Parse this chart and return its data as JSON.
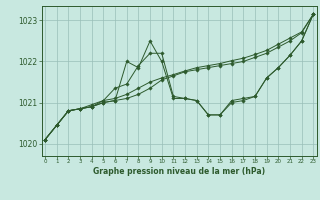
{
  "title": "Graphe pression niveau de la mer (hPa)",
  "background_color": "#c8e8e0",
  "plot_bg_color": "#c8e8e0",
  "grid_color": "#9abfb8",
  "line_color": "#2d5a2d",
  "marker_color": "#2d5a2d",
  "ylim": [
    1019.7,
    1023.35
  ],
  "yticks": [
    1020,
    1021,
    1022,
    1023
  ],
  "xticks": [
    0,
    1,
    2,
    3,
    4,
    5,
    6,
    7,
    8,
    9,
    10,
    11,
    12,
    13,
    14,
    15,
    16,
    17,
    18,
    19,
    20,
    21,
    22,
    23
  ],
  "series": [
    [
      1020.1,
      1020.45,
      1020.8,
      1020.85,
      1020.9,
      1021.0,
      1021.05,
      1022.0,
      1021.85,
      1022.5,
      1022.0,
      1021.1,
      1021.1,
      1021.05,
      1020.7,
      1020.7,
      1021.05,
      1021.1,
      1021.15,
      1021.6,
      1021.85,
      1022.15,
      1022.5,
      1023.15
    ],
    [
      1020.1,
      1020.45,
      1020.8,
      1020.85,
      1020.9,
      1021.05,
      1021.35,
      1021.45,
      1021.9,
      1022.2,
      1022.2,
      1021.15,
      1021.1,
      1021.05,
      1020.7,
      1020.7,
      1021.0,
      1021.05,
      1021.15,
      1021.6,
      1021.85,
      1022.15,
      1022.5,
      1023.15
    ],
    [
      1020.1,
      1020.45,
      1020.8,
      1020.85,
      1020.9,
      1021.0,
      1021.05,
      1021.1,
      1021.2,
      1021.35,
      1021.55,
      1021.65,
      1021.75,
      1021.8,
      1021.85,
      1021.9,
      1021.95,
      1022.0,
      1022.1,
      1022.2,
      1022.35,
      1022.5,
      1022.7,
      1023.15
    ],
    [
      1020.1,
      1020.45,
      1020.8,
      1020.85,
      1020.95,
      1021.05,
      1021.1,
      1021.2,
      1021.35,
      1021.5,
      1021.6,
      1021.68,
      1021.77,
      1021.85,
      1021.9,
      1021.95,
      1022.02,
      1022.08,
      1022.17,
      1022.27,
      1022.42,
      1022.57,
      1022.72,
      1023.15
    ]
  ]
}
